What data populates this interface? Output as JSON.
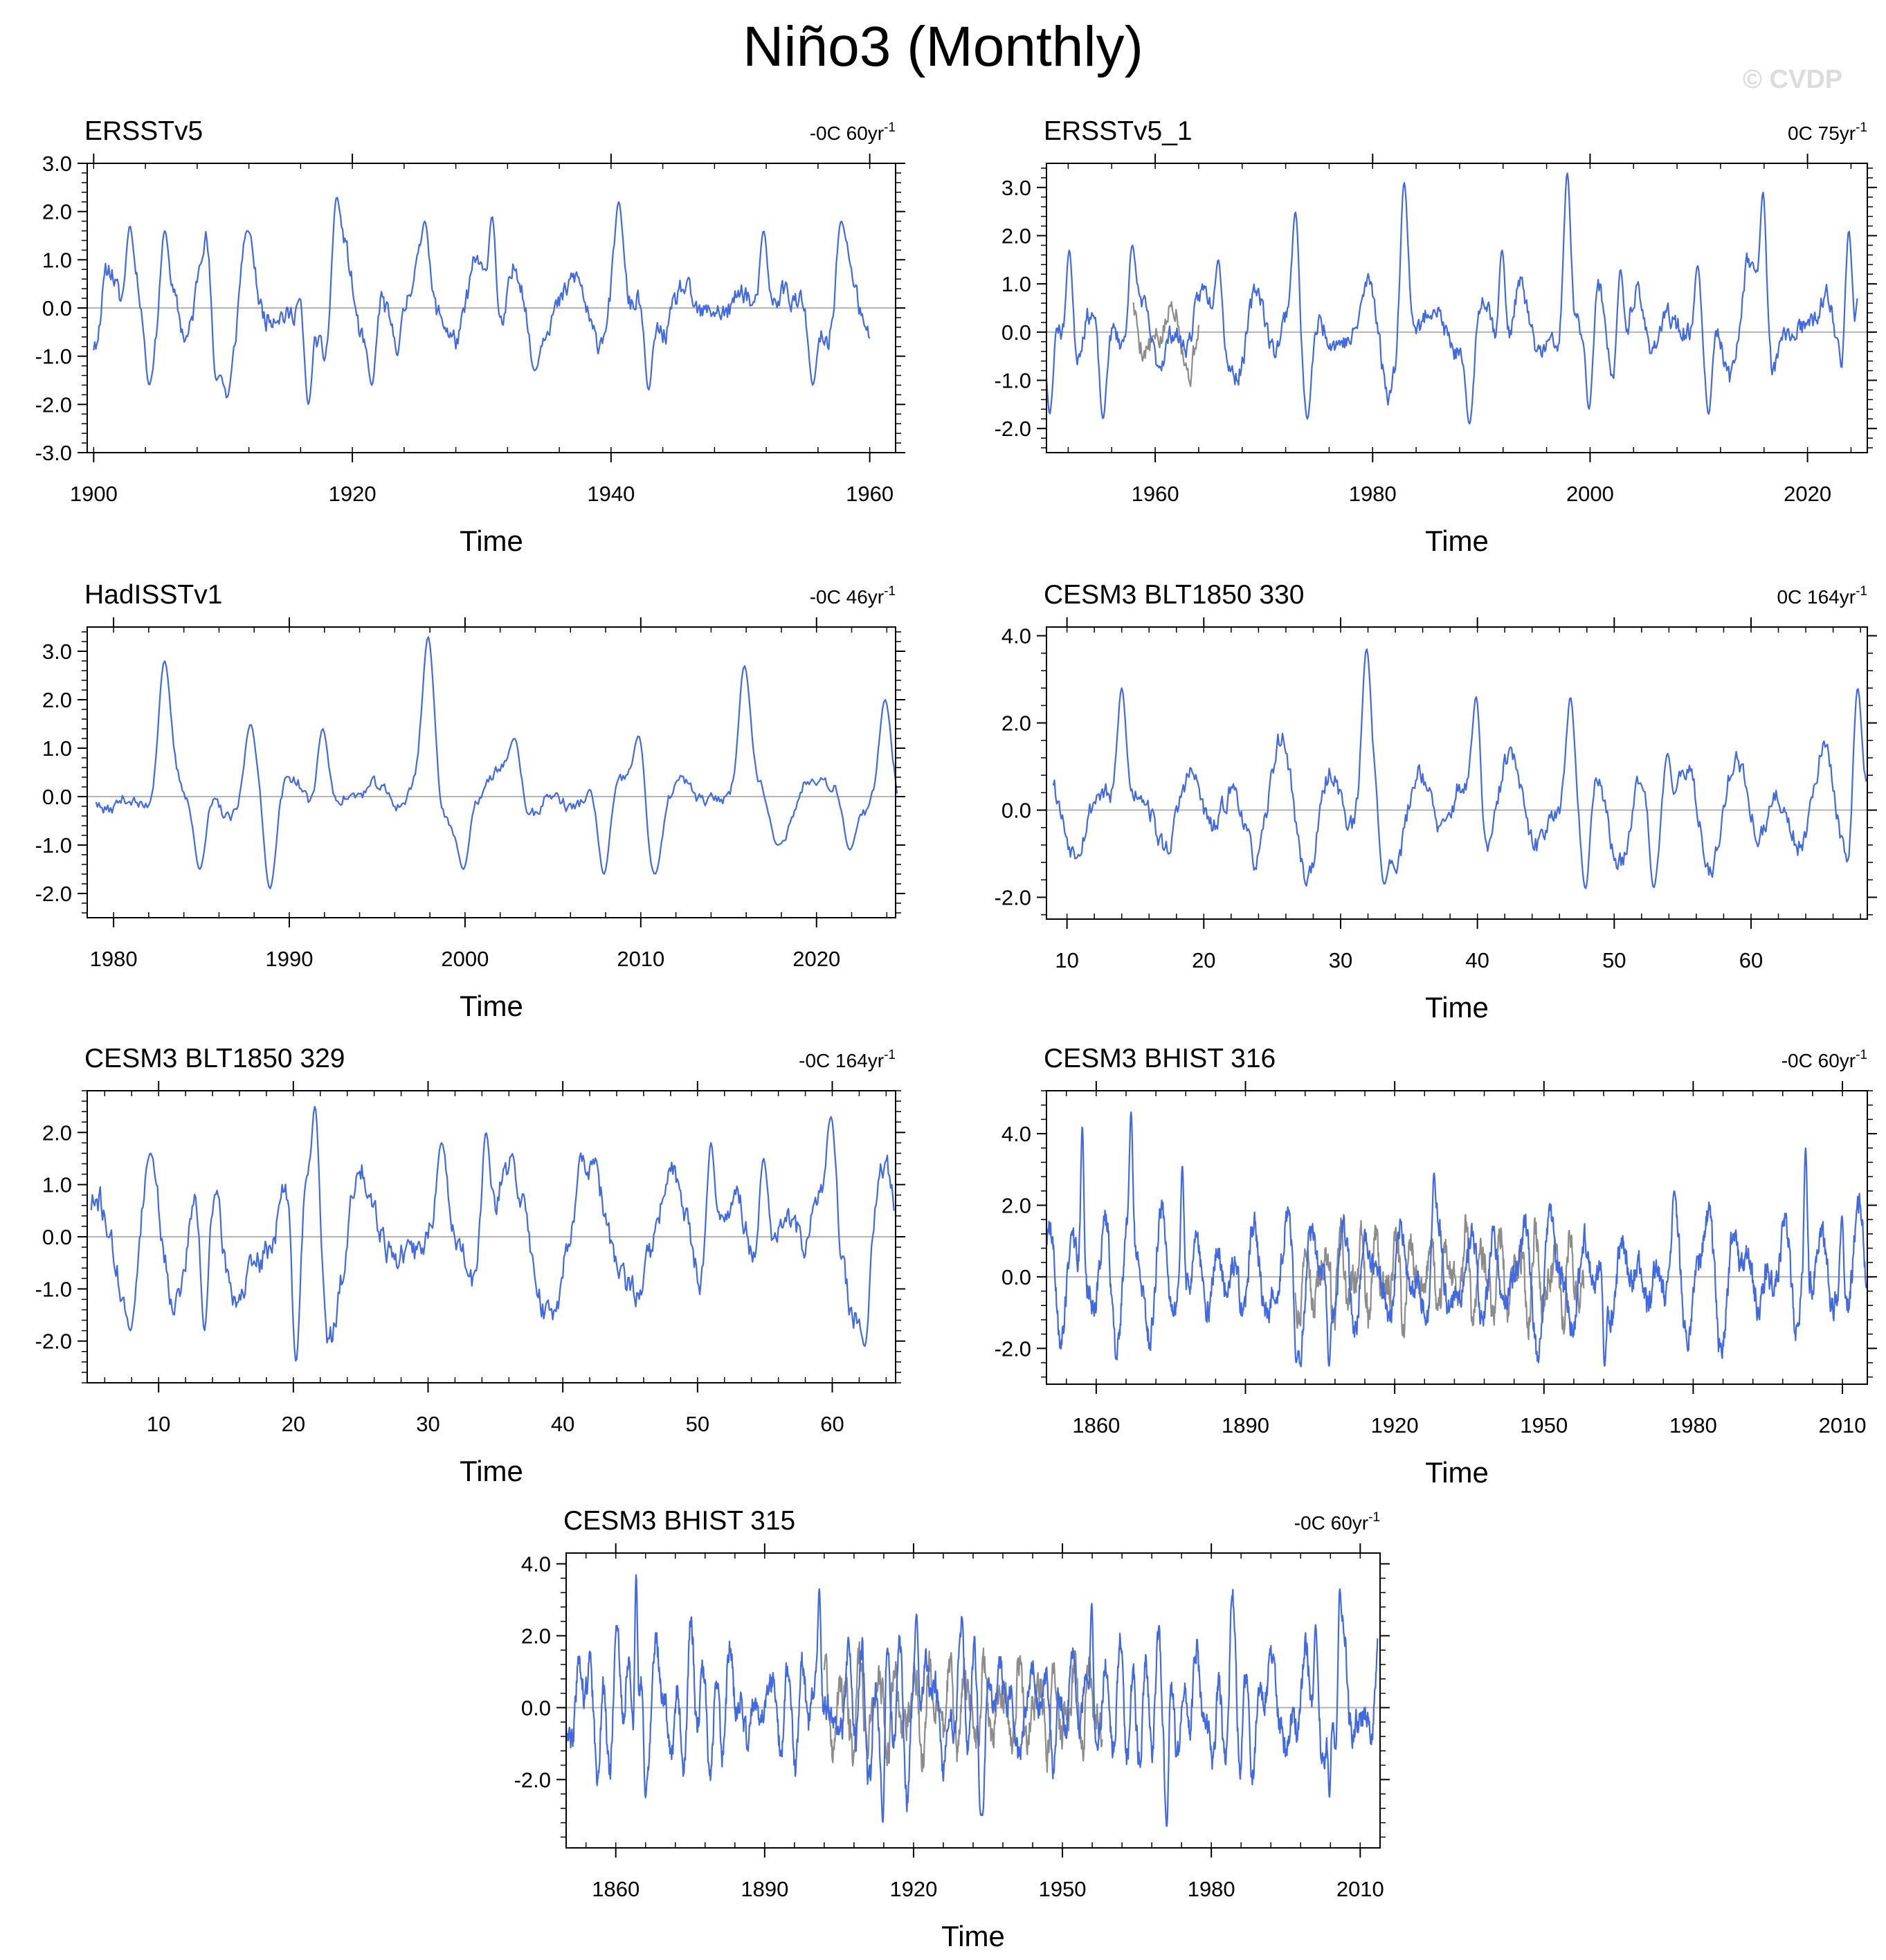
{
  "figure_title": "Niño3 (Monthly)",
  "watermark": "© CVDP",
  "colors": {
    "series": "#4169e1",
    "observations_overlay": "#8c8c8c",
    "zero_line": "#b4b4b4",
    "frame": "#000000"
  },
  "chart_data": [
    {
      "type": "line",
      "title": "ERSSTv5",
      "trend_label": {
        "prefix": "-0C 60yr",
        "superscript": "-1"
      },
      "xlabel": "Time",
      "ylabel": "",
      "xlim": [
        1899.5,
        1962
      ],
      "ylim": [
        -3.0,
        3.0
      ],
      "x_ticks": [
        1900,
        1920,
        1940,
        1960
      ],
      "x_tick_labels": [
        "1900",
        "1920",
        "1940",
        "1960"
      ],
      "y_ticks": [
        -3.0,
        -2.0,
        -1.0,
        0.0,
        1.0,
        2.0,
        3.0
      ],
      "y_tick_labels": [
        "-3.0",
        "-2.0",
        "-1.0",
        "0.0",
        "1.0",
        "2.0",
        "3.0"
      ],
      "zero_line": true,
      "series": [
        {
          "years": [
            1900,
            1960
          ],
          "peaks": [
            [
              1902.8,
              1.7
            ],
            [
              1904.3,
              -1.6
            ],
            [
              1905.5,
              1.6
            ],
            [
              1909.5,
              -1.5
            ],
            [
              1911.9,
              1.6
            ],
            [
              1916.6,
              -2.0
            ],
            [
              1918.8,
              2.3
            ],
            [
              1921.5,
              -1.6
            ],
            [
              1925.6,
              1.8
            ],
            [
              1930.8,
              1.9
            ],
            [
              1934.1,
              -1.3
            ],
            [
              1940.6,
              2.2
            ],
            [
              1942.9,
              -1.7
            ],
            [
              1951.8,
              1.6
            ],
            [
              1955.6,
              -1.6
            ],
            [
              1957.8,
              1.8
            ]
          ],
          "amp": 0.85,
          "seed": 11
        }
      ]
    },
    {
      "type": "line",
      "title": "ERSSTv5_1",
      "trend_label": {
        "prefix": "0C 75yr",
        "superscript": "-1"
      },
      "xlabel": "Time",
      "ylabel": "",
      "xlim": [
        1950,
        2025.5
      ],
      "ylim": [
        -2.5,
        3.5
      ],
      "x_ticks": [
        1960,
        1980,
        2000,
        2020
      ],
      "x_tick_labels": [
        "1960",
        "1980",
        "2000",
        "2020"
      ],
      "y_ticks": [
        -2.0,
        -1.0,
        0.0,
        1.0,
        2.0,
        3.0
      ],
      "y_tick_labels": [
        "-2.0",
        "-1.0",
        "0.0",
        "1.0",
        "2.0",
        "3.0"
      ],
      "zero_line": true,
      "series": [
        {
          "years": [
            1950,
            2024.6
          ],
          "peaks": [
            [
              1950.3,
              -1.7
            ],
            [
              1952.1,
              1.7
            ],
            [
              1955.2,
              -1.8
            ],
            [
              1957.9,
              1.8
            ],
            [
              1965.8,
              1.5
            ],
            [
              1972.9,
              2.5
            ],
            [
              1974.0,
              -1.8
            ],
            [
              1982.9,
              3.1
            ],
            [
              1988.9,
              -1.9
            ],
            [
              1991.9,
              1.7
            ],
            [
              1997.9,
              3.3
            ],
            [
              1999.9,
              -1.6
            ],
            [
              2002.8,
              1.3
            ],
            [
              2009.9,
              1.4
            ],
            [
              2010.9,
              -1.7
            ],
            [
              2015.9,
              2.9
            ],
            [
              2023.8,
              2.1
            ]
          ],
          "amp": 0.75,
          "seed": 23
        },
        {
          "role": "overlay",
          "years": [
            1958,
            1964
          ],
          "seed": 5
        }
      ]
    },
    {
      "type": "line",
      "title": "HadISSTv1",
      "trend_label": {
        "prefix": "-0C 46yr",
        "superscript": "-1"
      },
      "xlabel": "Time",
      "ylabel": "",
      "xlim": [
        1978.5,
        2024.5
      ],
      "ylim": [
        -2.5,
        3.5
      ],
      "x_ticks": [
        1980,
        1990,
        2000,
        2010,
        2020
      ],
      "x_tick_labels": [
        "1980",
        "1990",
        "2000",
        "2010",
        "2020"
      ],
      "y_ticks": [
        -2.0,
        -1.0,
        0.0,
        1.0,
        2.0,
        3.0
      ],
      "y_tick_labels": [
        "-2.0",
        "-1.0",
        "0.0",
        "1.0",
        "2.0",
        "3.0"
      ],
      "zero_line": true,
      "series": [
        {
          "years": [
            1979,
            2024.6
          ],
          "peaks": [
            [
              1982.9,
              2.8
            ],
            [
              1984.9,
              -1.5
            ],
            [
              1987.8,
              1.5
            ],
            [
              1988.9,
              -1.9
            ],
            [
              1991.9,
              1.4
            ],
            [
              1997.9,
              3.3
            ],
            [
              1999.9,
              -1.5
            ],
            [
              2002.8,
              1.2
            ],
            [
              2007.9,
              -1.6
            ],
            [
              2009.9,
              1.3
            ],
            [
              2010.8,
              -1.6
            ],
            [
              2015.9,
              2.7
            ],
            [
              2017.8,
              -1.0
            ],
            [
              2021.9,
              -1.1
            ],
            [
              2023.9,
              2.0
            ]
          ],
          "amp": 0.45,
          "seed": 37
        }
      ]
    },
    {
      "type": "line",
      "title": "CESM3 BLT1850 330",
      "trend_label": {
        "prefix": "0C 164yr",
        "superscript": "-1"
      },
      "xlabel": "Time",
      "ylabel": "",
      "xlim": [
        8.5,
        68.5
      ],
      "ylim": [
        -2.5,
        4.2
      ],
      "x_ticks": [
        10,
        20,
        30,
        40,
        50,
        60
      ],
      "x_tick_labels": [
        "10",
        "20",
        "30",
        "40",
        "50",
        "60"
      ],
      "y_ticks": [
        -2.0,
        0.0,
        2.0,
        4.0
      ],
      "y_tick_labels": [
        "-2.0",
        "0.0",
        "2.0",
        "4.0"
      ],
      "zero_line": true,
      "series": [
        {
          "years": [
            9,
            68.4
          ],
          "peaks": [
            [
              14.0,
              2.8
            ],
            [
              31.9,
              3.7
            ],
            [
              33.2,
              -1.7
            ],
            [
              39.9,
              2.6
            ],
            [
              46.8,
              2.6
            ],
            [
              47.9,
              -1.8
            ],
            [
              52.9,
              -1.8
            ],
            [
              53.9,
              1.3
            ],
            [
              67.8,
              2.8
            ]
          ],
          "amp": 0.9,
          "seed": 53
        }
      ]
    },
    {
      "type": "line",
      "title": "CESM3 BLT1850 329",
      "trend_label": {
        "prefix": "-0C 164yr",
        "superscript": "-1"
      },
      "xlabel": "Time",
      "ylabel": "",
      "xlim": [
        4.7,
        64.7
      ],
      "ylim": [
        -2.8,
        2.8
      ],
      "x_ticks": [
        10,
        20,
        30,
        40,
        50,
        60
      ],
      "x_tick_labels": [
        "10",
        "20",
        "30",
        "40",
        "50",
        "60"
      ],
      "y_ticks": [
        -2.0,
        -1.0,
        0.0,
        1.0,
        2.0
      ],
      "y_tick_labels": [
        "-2.0",
        "-1.0",
        "0.0",
        "1.0",
        "2.0"
      ],
      "zero_line": true,
      "series": [
        {
          "years": [
            5,
            64.6
          ],
          "peaks": [
            [
              7.9,
              -1.8
            ],
            [
              9.4,
              1.6
            ],
            [
              13.4,
              -1.8
            ],
            [
              20.2,
              -2.4
            ],
            [
              21.6,
              2.5
            ],
            [
              31.0,
              1.8
            ],
            [
              34.3,
              2.0
            ],
            [
              51.0,
              1.8
            ],
            [
              54.9,
              1.5
            ],
            [
              59.9,
              2.3
            ],
            [
              62.4,
              -2.1
            ]
          ],
          "amp": 1.0,
          "seed": 71
        }
      ]
    },
    {
      "type": "line",
      "title": "CESM3 BHIST 316",
      "trend_label": {
        "prefix": "-0C 60yr",
        "superscript": "-1"
      },
      "xlabel": "Time",
      "ylabel": "",
      "xlim": [
        1850,
        2015
      ],
      "ylim": [
        -3.0,
        5.2
      ],
      "x_ticks": [
        1860,
        1890,
        1920,
        1950,
        1980,
        2010
      ],
      "x_tick_labels": [
        "1860",
        "1890",
        "1920",
        "1950",
        "1980",
        "2010"
      ],
      "y_ticks": [
        -2.0,
        0.0,
        2.0,
        4.0
      ],
      "y_tick_labels": [
        "-2.0",
        "0.0",
        "2.0",
        "4.0"
      ],
      "zero_line": true,
      "series": [
        {
          "years": [
            1850,
            2014.9
          ],
          "peaks": [
            [
              1857.2,
              4.2
            ],
            [
              1867.0,
              4.6
            ],
            [
              1877.3,
              3.1
            ],
            [
              1900.2,
              -2.4
            ],
            [
              1906.8,
              -2.5
            ],
            [
              1927.9,
              2.9
            ],
            [
              1962.2,
              -2.5
            ],
            [
              1976.2,
              2.4
            ],
            [
              2002.6,
              3.6
            ],
            [
              2009.9,
              1.7
            ]
          ],
          "amp": 1.2,
          "seed": 89
        },
        {
          "role": "overlay",
          "years": [
            1900,
            1958
          ],
          "seed": 97
        }
      ]
    },
    {
      "type": "line",
      "title": "CESM3 BHIST 315",
      "trend_label": {
        "prefix": "-0C 60yr",
        "superscript": "-1"
      },
      "xlabel": "Time",
      "ylabel": "",
      "xlim": [
        1850,
        2014
      ],
      "ylim": [
        -3.9,
        4.3
      ],
      "x_ticks": [
        1860,
        1890,
        1920,
        1950,
        1980,
        2010
      ],
      "x_tick_labels": [
        "1860",
        "1890",
        "1920",
        "1950",
        "1980",
        "2010"
      ],
      "y_ticks": [
        -2.0,
        0.0,
        2.0,
        4.0
      ],
      "y_tick_labels": [
        "-2.0",
        "0.0",
        "2.0",
        "4.0"
      ],
      "zero_line": true,
      "series": [
        {
          "years": [
            1850,
            2013.5
          ],
          "peaks": [
            [
              1864.1,
              3.7
            ],
            [
              1866.0,
              -2.5
            ],
            [
              1901.0,
              3.3
            ],
            [
              1913.8,
              -3.2
            ],
            [
              1920.6,
              2.6
            ],
            [
              1933.8,
              -3.0
            ],
            [
              1955.9,
              2.9
            ],
            [
              1971.0,
              -3.3
            ],
            [
              2001.0,
              2.3
            ],
            [
              2003.8,
              -2.5
            ],
            [
              2005.9,
              3.3
            ]
          ],
          "amp": 1.25,
          "seed": 113
        },
        {
          "role": "overlay",
          "years": [
            1902,
            1958
          ],
          "seed": 131
        }
      ]
    }
  ]
}
